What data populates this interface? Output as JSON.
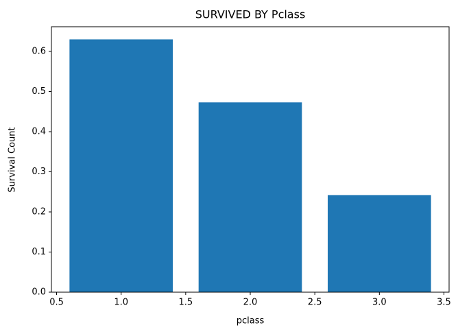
{
  "chart_data": {
    "type": "bar",
    "title": "SURVIVED BY Pclass",
    "x_label": "pclass",
    "y_label": "Survival Count",
    "x": [
      1,
      2,
      3
    ],
    "values": [
      0.63,
      0.473,
      0.242
    ],
    "bar_width": 0.8,
    "color": "#1f77b4",
    "xlim": [
      0.46,
      3.54
    ],
    "ylim": [
      0,
      0.6615
    ],
    "xticks": [
      0.5,
      {
        "value": 1,
        "label": "1.0"
      },
      1.5,
      {
        "value": 2,
        "label": "2.0"
      },
      2.5,
      {
        "value": 3,
        "label": "3.0"
      },
      3.5
    ],
    "yticks": [
      {
        "value": 0,
        "label": "0.0"
      },
      0.1,
      0.2,
      0.3,
      0.4,
      0.5,
      0.6
    ],
    "grid": false
  }
}
